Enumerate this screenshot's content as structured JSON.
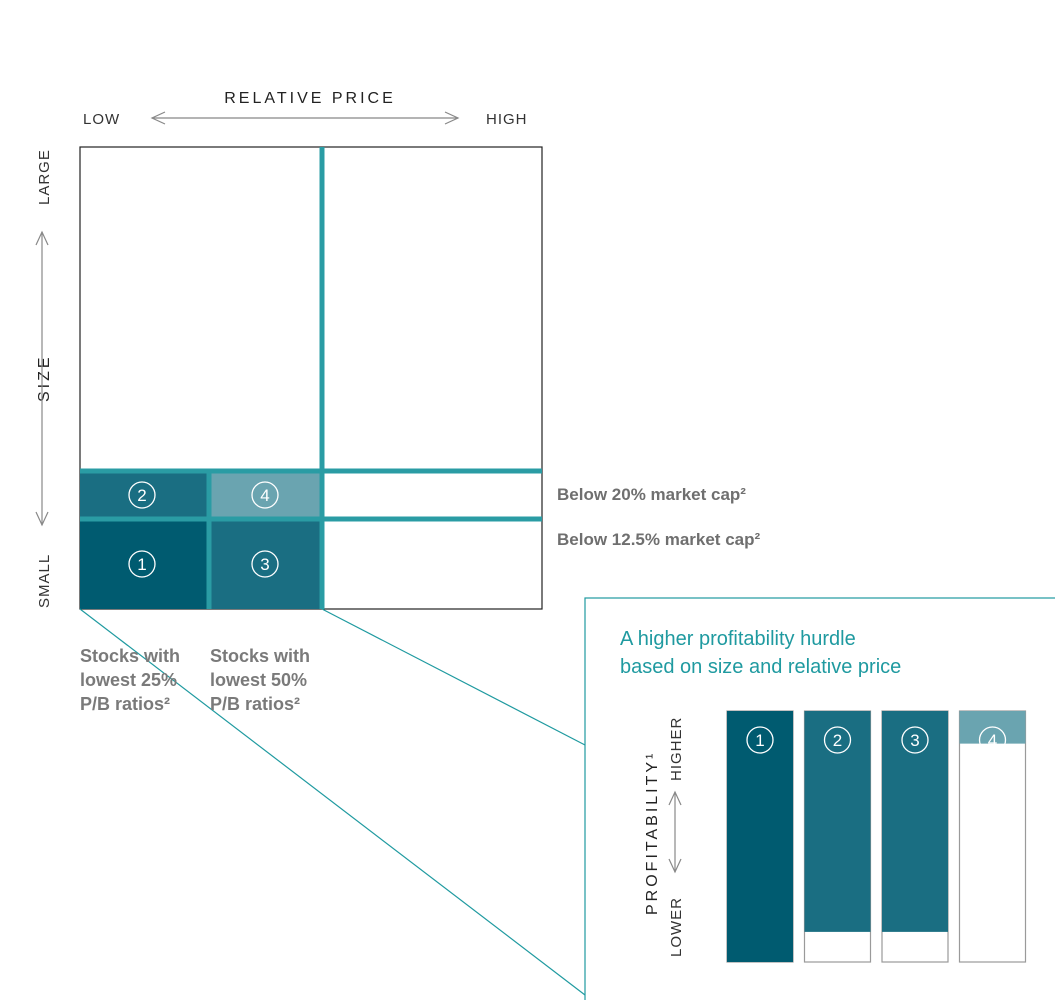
{
  "axes": {
    "x_title": "RELATIVE PRICE",
    "x_low": "LOW",
    "x_high": "HIGH",
    "y_title": "SIZE",
    "y_high": "LARGE",
    "y_low": "SMALL"
  },
  "size_thresholds": {
    "upper": "Below 20% market cap²",
    "lower": "Below 12.5% market cap²"
  },
  "columns": [
    "Stocks with lowest 25% P/B ratios²",
    "Stocks with lowest 50% P/B ratios²"
  ],
  "cells": [
    {
      "id": "1",
      "color": "#005b70"
    },
    {
      "id": "2",
      "color": "#1a6e82"
    },
    {
      "id": "3",
      "color": "#1a6e82"
    },
    {
      "id": "4",
      "color": "#6aa4b0"
    }
  ],
  "callout": {
    "title_line1": "A higher profitability hurdle",
    "title_line2": "based on size and relative price",
    "y_title": "PROFITABILITY¹",
    "y_high": "HIGHER",
    "y_low": "LOWER"
  },
  "chart_data": {
    "type": "bar",
    "categories": [
      "1",
      "2",
      "3",
      "4"
    ],
    "values": [
      1.0,
      0.88,
      0.88,
      0.13
    ],
    "colors": [
      "#005b70",
      "#1a6e82",
      "#1a6e82",
      "#6aa4b0"
    ]
  },
  "colors": {
    "accent": "#1f9aa0",
    "grid": "#2a9ca4",
    "border": "#222222"
  }
}
